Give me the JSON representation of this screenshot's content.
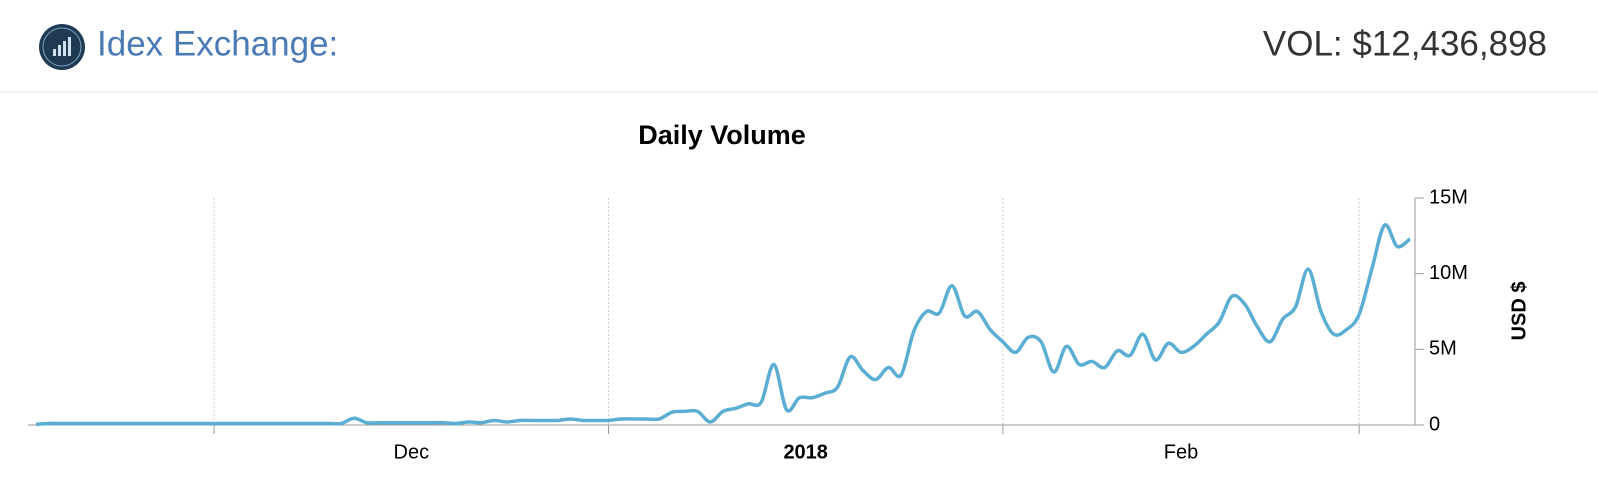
{
  "header": {
    "title": "Idex Exchange:",
    "volume": "VOL: $12,436,898"
  },
  "chart_data": {
    "type": "line",
    "title": "Daily Volume",
    "y_axis_label": "USD $",
    "series": [
      {
        "name": "Daily Volume",
        "color": "#5aadd3",
        "values": [
          50000,
          100000,
          100000,
          100000,
          100000,
          100000,
          100000,
          100000,
          100000,
          100000,
          100000,
          100000,
          100000,
          100000,
          100000,
          100000,
          100000,
          100000,
          100000,
          100000,
          100000,
          100000,
          100000,
          100000,
          100000,
          450000,
          150000,
          150000,
          150000,
          150000,
          150000,
          150000,
          150000,
          100000,
          200000,
          150000,
          300000,
          200000,
          300000,
          300000,
          300000,
          300000,
          400000,
          300000,
          300000,
          300000,
          400000,
          400000,
          400000,
          400000,
          850000,
          900000,
          900000,
          200000,
          900000,
          1100000,
          1400000,
          1500000,
          4000000,
          1000000,
          1800000,
          1800000,
          2100000,
          2500000,
          4500000,
          3600000,
          3000000,
          3800000,
          3300000,
          6200000,
          7500000,
          7400000,
          9200000,
          7200000,
          7500000,
          6300000,
          5500000,
          4800000,
          5800000,
          5500000,
          3500000,
          5200000,
          4000000,
          4200000,
          3800000,
          4900000,
          4600000,
          6000000,
          4300000,
          5400000,
          4800000,
          5200000,
          6000000,
          6800000,
          8500000,
          8000000,
          6500000,
          5500000,
          7000000,
          7800000,
          10300000,
          7500000,
          6000000,
          6300000,
          7300000,
          10300000,
          13200000,
          11800000,
          12300000
        ]
      }
    ],
    "xlim": [
      0,
      108
    ],
    "xticks": [
      14,
      45,
      76,
      104
    ],
    "x_labels": [
      {
        "value": 29.5,
        "label": "Dec"
      },
      {
        "value": 60.5,
        "label": "2018"
      },
      {
        "value": 90,
        "label": "Feb"
      }
    ],
    "ylim": [
      0,
      15000000
    ],
    "yticks": [
      0,
      {
        "value": 5000000,
        "label": "5M"
      },
      {
        "value": 10000000,
        "label": "10M"
      },
      {
        "value": 15000000,
        "label": "15M"
      }
    ],
    "grid": true
  }
}
